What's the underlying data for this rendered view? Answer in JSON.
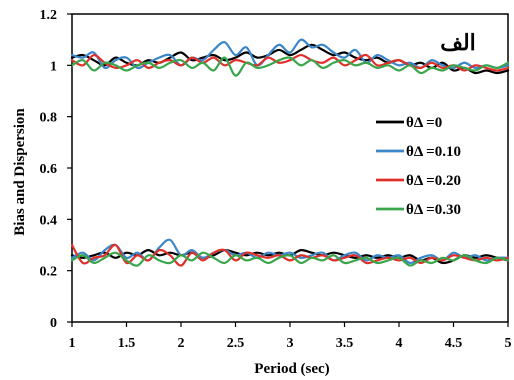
{
  "chart_data": {
    "type": "line",
    "title": "",
    "xlabel": "Period (sec)",
    "ylabel": "Bias and Dispersion",
    "xlim": [
      1,
      5
    ],
    "ylim": [
      0,
      1.2
    ],
    "x_ticks": [
      "1",
      "1.5",
      "2",
      "2.5",
      "3",
      "3.5",
      "4",
      "4.5",
      "5"
    ],
    "y_ticks": [
      "0",
      "0.2",
      "0.4",
      "0.6",
      "0.8",
      "1",
      "1.2"
    ],
    "grid": false,
    "legend_position": "right",
    "annotation": "الف",
    "x": [
      1.0,
      1.1,
      1.2,
      1.3,
      1.4,
      1.5,
      1.6,
      1.7,
      1.8,
      1.9,
      2.0,
      2.1,
      2.2,
      2.3,
      2.4,
      2.5,
      2.6,
      2.7,
      2.8,
      2.9,
      3.0,
      3.1,
      3.2,
      3.3,
      3.4,
      3.5,
      3.6,
      3.7,
      3.8,
      3.9,
      4.0,
      4.1,
      4.2,
      4.3,
      4.4,
      4.5,
      4.6,
      4.7,
      4.8,
      4.9,
      5.0
    ],
    "series": [
      {
        "name": "θΔ =0",
        "color": "#000000",
        "bias": [
          1.03,
          1.04,
          1.02,
          1.0,
          1.03,
          1.01,
          1.0,
          1.02,
          1.01,
          1.03,
          1.05,
          1.02,
          1.03,
          1.04,
          1.02,
          1.03,
          1.05,
          1.03,
          1.04,
          1.06,
          1.04,
          1.06,
          1.08,
          1.06,
          1.04,
          1.05,
          1.03,
          1.02,
          1.03,
          1.01,
          1.02,
          1.0,
          1.01,
          0.99,
          1.01,
          0.98,
          0.99,
          0.97,
          0.98,
          0.97,
          0.98
        ],
        "dispersion": [
          0.26,
          0.25,
          0.26,
          0.27,
          0.25,
          0.27,
          0.26,
          0.28,
          0.26,
          0.27,
          0.26,
          0.27,
          0.25,
          0.26,
          0.28,
          0.27,
          0.26,
          0.27,
          0.26,
          0.27,
          0.26,
          0.28,
          0.27,
          0.26,
          0.27,
          0.26,
          0.25,
          0.26,
          0.25,
          0.26,
          0.25,
          0.26,
          0.24,
          0.25,
          0.23,
          0.24,
          0.26,
          0.25,
          0.26,
          0.25,
          0.24
        ]
      },
      {
        "name": "θΔ =0.10",
        "color": "#3a86c8",
        "bias": [
          1.04,
          1.03,
          1.05,
          0.99,
          1.02,
          1.03,
          0.99,
          1.01,
          1.03,
          1.04,
          1.0,
          1.03,
          1.02,
          1.06,
          1.09,
          1.04,
          1.07,
          1.0,
          1.04,
          1.08,
          1.05,
          1.1,
          1.07,
          1.08,
          1.05,
          1.03,
          1.06,
          1.01,
          1.04,
          1.02,
          1.0,
          1.01,
          0.99,
          1.02,
          1.0,
          0.99,
          1.01,
          0.99,
          1.0,
          0.99,
          1.0
        ],
        "dispersion": [
          0.25,
          0.27,
          0.24,
          0.28,
          0.3,
          0.25,
          0.27,
          0.24,
          0.29,
          0.32,
          0.26,
          0.28,
          0.25,
          0.27,
          0.28,
          0.26,
          0.27,
          0.25,
          0.27,
          0.26,
          0.27,
          0.25,
          0.26,
          0.27,
          0.24,
          0.26,
          0.27,
          0.24,
          0.26,
          0.25,
          0.26,
          0.23,
          0.25,
          0.26,
          0.24,
          0.27,
          0.25,
          0.26,
          0.24,
          0.25,
          0.25
        ]
      },
      {
        "name": "θΔ =0.20",
        "color": "#e0302b",
        "bias": [
          1.02,
          1.0,
          1.04,
          1.01,
          0.99,
          1.0,
          1.02,
          0.99,
          1.01,
          1.02,
          1.0,
          1.03,
          1.01,
          1.03,
          1.0,
          1.02,
          1.01,
          1.0,
          1.03,
          1.01,
          1.02,
          1.04,
          1.02,
          1.01,
          1.03,
          1.0,
          1.02,
          1.04,
          1.0,
          1.01,
          1.02,
          1.0,
          0.99,
          1.01,
          0.99,
          1.0,
          0.98,
          1.0,
          0.99,
          0.98,
          0.99
        ],
        "dispersion": [
          0.3,
          0.23,
          0.25,
          0.26,
          0.3,
          0.23,
          0.26,
          0.24,
          0.28,
          0.26,
          0.22,
          0.27,
          0.24,
          0.27,
          0.28,
          0.24,
          0.27,
          0.26,
          0.25,
          0.26,
          0.24,
          0.26,
          0.25,
          0.26,
          0.24,
          0.25,
          0.26,
          0.23,
          0.24,
          0.25,
          0.24,
          0.25,
          0.23,
          0.25,
          0.24,
          0.26,
          0.25,
          0.24,
          0.25,
          0.24,
          0.25
        ]
      },
      {
        "name": "θΔ =0.30",
        "color": "#3aa64b",
        "bias": [
          1.0,
          1.02,
          0.98,
          1.01,
          1.0,
          0.98,
          1.0,
          1.01,
          0.99,
          1.01,
          1.02,
          0.99,
          1.01,
          0.98,
          1.03,
          0.96,
          1.01,
          0.99,
          1.0,
          1.02,
          1.03,
          1.0,
          1.02,
          0.99,
          1.01,
          1.02,
          1.0,
          1.01,
          0.99,
          1.0,
          0.98,
          1.0,
          0.97,
          0.99,
          0.98,
          1.0,
          0.99,
          0.98,
          1.0,
          0.99,
          1.01
        ],
        "dispersion": [
          0.24,
          0.26,
          0.23,
          0.25,
          0.27,
          0.24,
          0.22,
          0.26,
          0.24,
          0.23,
          0.26,
          0.24,
          0.27,
          0.25,
          0.23,
          0.26,
          0.24,
          0.25,
          0.23,
          0.25,
          0.26,
          0.23,
          0.25,
          0.24,
          0.26,
          0.23,
          0.24,
          0.25,
          0.23,
          0.24,
          0.25,
          0.22,
          0.24,
          0.23,
          0.25,
          0.24,
          0.26,
          0.24,
          0.23,
          0.25,
          0.24
        ]
      }
    ]
  }
}
